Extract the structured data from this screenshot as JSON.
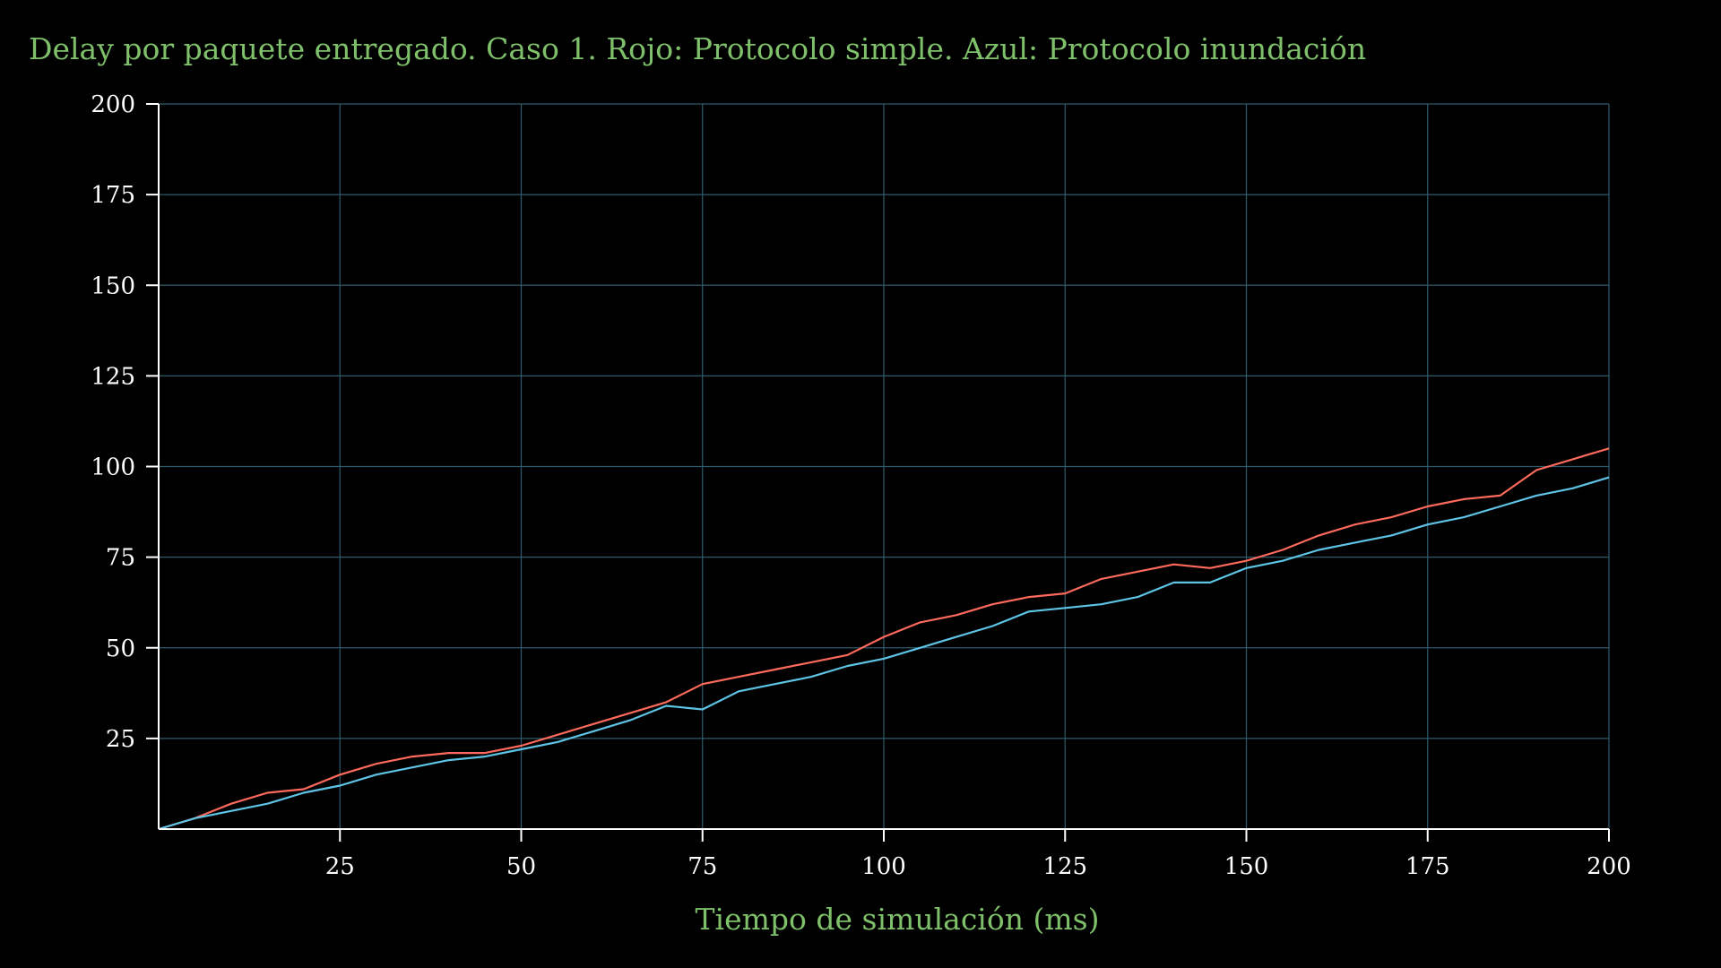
{
  "chart_data": {
    "type": "line",
    "title": "Delay por paquete entregado. Caso 1. Rojo: Protocolo simple. Azul: Protocolo inundación",
    "xlabel": "Tiempo de simulación (ms)",
    "ylabel": "",
    "xlim": [
      0,
      200
    ],
    "ylim": [
      0,
      200
    ],
    "x_ticks": [
      "25",
      "50",
      "75",
      "100",
      "125",
      "150",
      "175",
      "200"
    ],
    "y_ticks": [
      "25",
      "50",
      "75",
      "100",
      "125",
      "150",
      "175",
      "200"
    ],
    "grid": true,
    "x": [
      0,
      5,
      10,
      15,
      20,
      25,
      30,
      35,
      40,
      45,
      50,
      55,
      60,
      65,
      70,
      75,
      80,
      85,
      90,
      95,
      100,
      105,
      110,
      115,
      120,
      125,
      130,
      135,
      140,
      145,
      150,
      155,
      160,
      165,
      170,
      175,
      180,
      185,
      190,
      195,
      200
    ],
    "series": [
      {
        "values": [
          0,
          3,
          7,
          10,
          11,
          15,
          18,
          20,
          21,
          21,
          23,
          26,
          29,
          32,
          35,
          40,
          42,
          44,
          46,
          48,
          53,
          57,
          59,
          62,
          64,
          65,
          69,
          71,
          73,
          72,
          74,
          77,
          81,
          84,
          86,
          89,
          91,
          92,
          99,
          102,
          105
        ],
        "color": "#ff6a5c"
      },
      {
        "values": [
          0,
          3,
          5,
          7,
          10,
          12,
          15,
          17,
          19,
          20,
          22,
          24,
          27,
          30,
          34,
          33,
          38,
          40,
          42,
          45,
          47,
          50,
          53,
          56,
          60,
          61,
          62,
          64,
          68,
          68,
          72,
          74,
          77,
          79,
          81,
          84,
          86,
          89,
          92,
          94,
          97
        ],
        "color": "#5ec4e6"
      }
    ],
    "colors": {
      "background": "#000000",
      "title": "#7fc06a",
      "axis": "#ffffff",
      "grid": "#2e5a6b"
    }
  }
}
